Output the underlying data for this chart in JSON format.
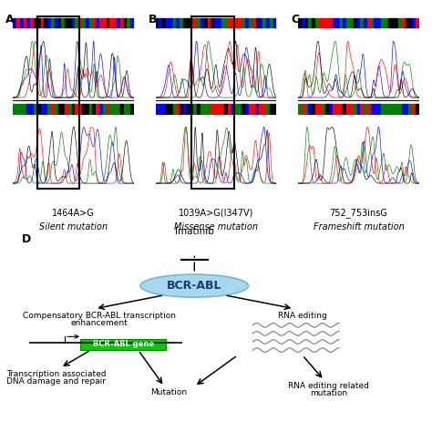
{
  "background_color": "#ffffff",
  "panel_A_label": "1464A>G",
  "panel_A_sublabel": "Silent mutation",
  "panel_B_label": "1039A>G(I347V)",
  "panel_B_sublabel": "Missense mutation",
  "panel_C_label": "752_753insG",
  "panel_C_sublabel": "Frameshift mutation",
  "bcr_abl_text": "BCR-ABL",
  "imatinib_text": "Imatinib",
  "left_label1": "Compensatory BCR-ABL transcription",
  "left_label2": "enhancement",
  "gene_label": "BCR-ABL gene",
  "bottom_left_label1": "Transcription associated",
  "bottom_left_label2": "DNA damage and repair",
  "rna_editing_label": "RNA editing",
  "rna_mutation_label1": "RNA editing related",
  "rna_mutation_label2": "mutation",
  "mutation_label": "Mutation",
  "ellipse_color": "#a8d8f0",
  "ellipse_edge": "#70b8d8",
  "gene_box_color": "#00cc00",
  "imatinib_dot_color": "#30b8d8",
  "wavy_color": "#888888",
  "font_size_label": 6.5,
  "font_size_panel": 9,
  "font_size_bcr": 8
}
